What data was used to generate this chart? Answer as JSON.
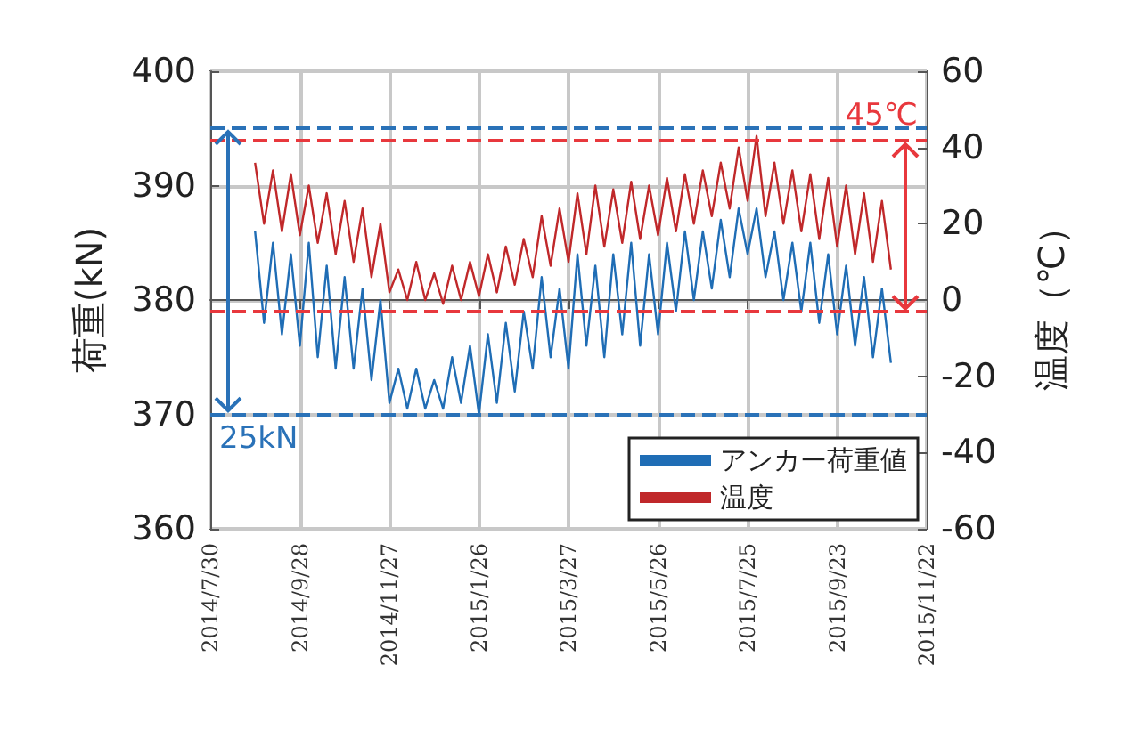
{
  "chart_data": {
    "type": "line",
    "ylabel": "荷重(kN)",
    "y2label": "温度（℃）",
    "x": [
      "2014-08-29",
      "2014-09-04",
      "2014-09-10",
      "2014-09-16",
      "2014-09-22",
      "2014-09-28",
      "2014-10-04",
      "2014-10-10",
      "2014-10-16",
      "2014-10-22",
      "2014-10-28",
      "2014-11-03",
      "2014-11-09",
      "2014-11-15",
      "2014-11-21",
      "2014-11-27",
      "2014-12-03",
      "2014-12-09",
      "2014-12-15",
      "2014-12-21",
      "2014-12-27",
      "2015-01-02",
      "2015-01-08",
      "2015-01-14",
      "2015-01-20",
      "2015-01-26",
      "2015-02-01",
      "2015-02-07",
      "2015-02-13",
      "2015-02-19",
      "2015-02-25",
      "2015-03-03",
      "2015-03-09",
      "2015-03-15",
      "2015-03-21",
      "2015-03-27",
      "2015-04-02",
      "2015-04-08",
      "2015-04-14",
      "2015-04-20",
      "2015-04-26",
      "2015-05-02",
      "2015-05-08",
      "2015-05-14",
      "2015-05-20",
      "2015-05-26",
      "2015-06-01",
      "2015-06-07",
      "2015-06-13",
      "2015-06-19",
      "2015-06-25",
      "2015-07-01",
      "2015-07-07",
      "2015-07-13",
      "2015-07-19",
      "2015-07-25",
      "2015-07-31",
      "2015-08-06",
      "2015-08-12",
      "2015-08-18",
      "2015-08-24",
      "2015-08-30",
      "2015-09-05",
      "2015-09-11",
      "2015-09-17",
      "2015-09-23",
      "2015-09-29",
      "2015-10-05",
      "2015-10-11",
      "2015-10-17",
      "2015-10-23",
      "2015-10-29"
    ],
    "series": [
      {
        "name": "アンカー荷重値",
        "color": "#1f6db5",
        "values": [
          386,
          378,
          385,
          377,
          384,
          376,
          385,
          375,
          383,
          374,
          382,
          374,
          381,
          373,
          380,
          371,
          374,
          370.5,
          374,
          370.5,
          373,
          370.5,
          375,
          371,
          376,
          370,
          377,
          371,
          378,
          372,
          379,
          374,
          382,
          375,
          381,
          374,
          384,
          376,
          383,
          375,
          384,
          377,
          385,
          376,
          384,
          377,
          385,
          379,
          386,
          380,
          386,
          381,
          387,
          382,
          388,
          384,
          388,
          382,
          386,
          380,
          385,
          379,
          385,
          378,
          384,
          377,
          383,
          376,
          382,
          375,
          381,
          374.5
        ]
      },
      {
        "name": "温度",
        "color": "#c0282a",
        "axis": "y2",
        "values": [
          36,
          20,
          34,
          18,
          33,
          17,
          30,
          15,
          28,
          12,
          26,
          10,
          24,
          6,
          20,
          2,
          8,
          0,
          10,
          0,
          7,
          -1,
          9,
          0,
          10,
          1,
          12,
          2,
          14,
          4,
          16,
          6,
          22,
          9,
          24,
          10,
          28,
          12,
          30,
          14,
          29,
          15,
          31,
          16,
          30,
          17,
          32,
          18,
          33,
          20,
          34,
          22,
          36,
          24,
          40,
          26,
          43,
          22,
          36,
          20,
          34,
          18,
          33,
          16,
          32,
          14,
          30,
          12,
          28,
          10,
          26,
          8
        ]
      }
    ],
    "xlim": [
      "2014-07-30",
      "2015-11-22"
    ],
    "xticks": [
      {
        "value": "2014-07-30",
        "label": "2014/7/30"
      },
      {
        "value": "2014-09-28",
        "label": "2014/9/28"
      },
      {
        "value": "2014-11-27",
        "label": "2014/11/27"
      },
      {
        "value": "2015-01-26",
        "label": "2015/1/26"
      },
      {
        "value": "2015-03-27",
        "label": "2015/3/27"
      },
      {
        "value": "2015-05-26",
        "label": "2015/5/26"
      },
      {
        "value": "2015-07-25",
        "label": "2015/7/25"
      },
      {
        "value": "2015-09-23",
        "label": "2015/9/23"
      },
      {
        "value": "2015-11-22",
        "label": "2015/11/22"
      }
    ],
    "ylim": [
      360,
      400
    ],
    "yticks": [
      360,
      370,
      380,
      390,
      400
    ],
    "y2lim": [
      -60,
      60
    ],
    "y2ticks": [
      -60,
      -40,
      -20,
      0,
      20,
      40,
      60
    ],
    "ref_lines": [
      {
        "axis": "y",
        "value": 395,
        "label": null,
        "color": "#2a72b8",
        "line_style": "dashed"
      },
      {
        "axis": "y",
        "value": 370,
        "label": "25kN",
        "color": "#2a72b8",
        "line_style": "dashed"
      },
      {
        "axis": "y2",
        "value": 42,
        "label": "45℃",
        "color": "#e8383d",
        "line_style": "dashed"
      },
      {
        "axis": "y2",
        "value": -3,
        "label": null,
        "color": "#e8383d",
        "line_style": "dashed"
      }
    ],
    "grid": true,
    "legend": "bottom right",
    "marker": "none",
    "line_style": "solid"
  }
}
